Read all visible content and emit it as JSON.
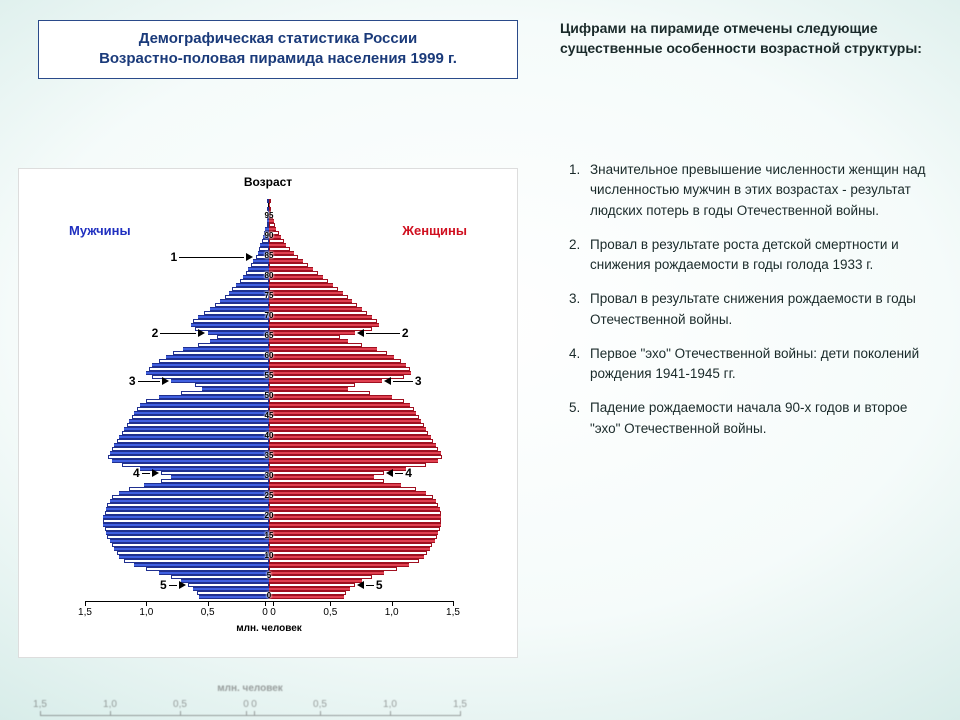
{
  "title_box": {
    "line1": "Демографическая статистика России",
    "line2": "Возрастно-половая пирамида населения 1999 г."
  },
  "intro": "Цифрами на пирамиде отмечены следующие существенные особенности возрастной структуры:",
  "notes": [
    "Значительное превышение численности женщин над численностью мужчин в этих возрастах - результат людских потерь в годы Отечественной войны.",
    "Провал в результате роста детской смертности и снижения рождаемости в годы голода 1933 г.",
    "Провал в результате снижения рождаемости в годы Отечественной войны.",
    "Первое \"эхо\" Отечественной войны: дети поколений рождения 1941-1945 гг.",
    "Падение рождаемости начала 90-х годов и второе \"эхо\" Отечественной войны."
  ],
  "chart": {
    "type": "population-pyramid",
    "axis_title_top": "Возраст",
    "left_label": "Мужчины",
    "right_label": "Женщины",
    "xaxis_label": "млн. человек",
    "xlim": 1.5,
    "xticks": [
      1.5,
      1.0,
      0.5,
      0,
      0,
      0.5,
      1.0,
      1.5
    ],
    "xtick_labels_left": [
      "1,5",
      "1,0",
      "0,5",
      "0"
    ],
    "xtick_labels_right": [
      "0",
      "0,5",
      "1,0",
      "1,5"
    ],
    "male_color": "#4060e0",
    "male_border": "#203090",
    "female_color": "#e04050",
    "female_border": "#a01020",
    "background": "#ffffff",
    "title_fontsize": 12,
    "label_fontsize": 13,
    "tick_fontsize": 10,
    "age_top": 99,
    "age_labels": [
      95,
      90,
      85,
      80,
      75,
      70,
      65,
      60,
      55,
      50,
      45,
      40,
      35,
      30,
      25,
      20,
      15,
      10,
      5,
      0
    ],
    "markers_left": [
      {
        "n": "1",
        "age": 85,
        "line": 65
      },
      {
        "n": "2",
        "age": 66,
        "line": 36
      },
      {
        "n": "3",
        "age": 54,
        "line": 22
      },
      {
        "n": "4",
        "age": 31,
        "line": 8
      },
      {
        "n": "5",
        "age": 3,
        "line": 8
      }
    ],
    "markers_right": [
      {
        "n": "2",
        "age": 66,
        "line": 34
      },
      {
        "n": "3",
        "age": 54,
        "line": 20
      },
      {
        "n": "4",
        "age": 31,
        "line": 8
      },
      {
        "n": "5",
        "age": 3,
        "line": 8
      }
    ],
    "male": [
      0.0,
      0.0,
      0.01,
      0.01,
      0.01,
      0.02,
      0.02,
      0.03,
      0.04,
      0.05,
      0.06,
      0.07,
      0.08,
      0.09,
      0.11,
      0.13,
      0.15,
      0.17,
      0.19,
      0.21,
      0.24,
      0.27,
      0.3,
      0.33,
      0.36,
      0.4,
      0.44,
      0.48,
      0.53,
      0.58,
      0.62,
      0.64,
      0.6,
      0.5,
      0.42,
      0.48,
      0.58,
      0.7,
      0.78,
      0.84,
      0.9,
      0.95,
      0.98,
      1.0,
      0.95,
      0.8,
      0.6,
      0.55,
      0.72,
      0.9,
      1.0,
      1.05,
      1.08,
      1.1,
      1.12,
      1.14,
      1.16,
      1.18,
      1.2,
      1.22,
      1.24,
      1.26,
      1.28,
      1.3,
      1.31,
      1.28,
      1.2,
      1.05,
      0.88,
      0.8,
      0.88,
      1.02,
      1.14,
      1.22,
      1.28,
      1.3,
      1.32,
      1.33,
      1.34,
      1.35,
      1.35,
      1.35,
      1.34,
      1.33,
      1.32,
      1.3,
      1.28,
      1.26,
      1.24,
      1.22,
      1.18,
      1.1,
      1.0,
      0.9,
      0.8,
      0.72,
      0.66,
      0.62,
      0.59,
      0.57
    ],
    "female": [
      0.01,
      0.01,
      0.02,
      0.02,
      0.03,
      0.04,
      0.05,
      0.06,
      0.08,
      0.1,
      0.12,
      0.14,
      0.17,
      0.2,
      0.24,
      0.28,
      0.32,
      0.36,
      0.4,
      0.44,
      0.48,
      0.52,
      0.56,
      0.6,
      0.64,
      0.68,
      0.72,
      0.76,
      0.8,
      0.84,
      0.88,
      0.9,
      0.84,
      0.7,
      0.58,
      0.64,
      0.76,
      0.88,
      0.96,
      1.02,
      1.08,
      1.12,
      1.15,
      1.16,
      1.1,
      0.92,
      0.7,
      0.64,
      0.82,
      1.0,
      1.1,
      1.15,
      1.18,
      1.2,
      1.22,
      1.24,
      1.26,
      1.28,
      1.3,
      1.32,
      1.34,
      1.36,
      1.38,
      1.4,
      1.41,
      1.38,
      1.28,
      1.12,
      0.94,
      0.86,
      0.94,
      1.08,
      1.2,
      1.28,
      1.34,
      1.36,
      1.38,
      1.39,
      1.4,
      1.4,
      1.4,
      1.4,
      1.39,
      1.38,
      1.37,
      1.35,
      1.33,
      1.31,
      1.29,
      1.26,
      1.22,
      1.14,
      1.04,
      0.94,
      0.84,
      0.76,
      0.7,
      0.66,
      0.63,
      0.61
    ]
  }
}
